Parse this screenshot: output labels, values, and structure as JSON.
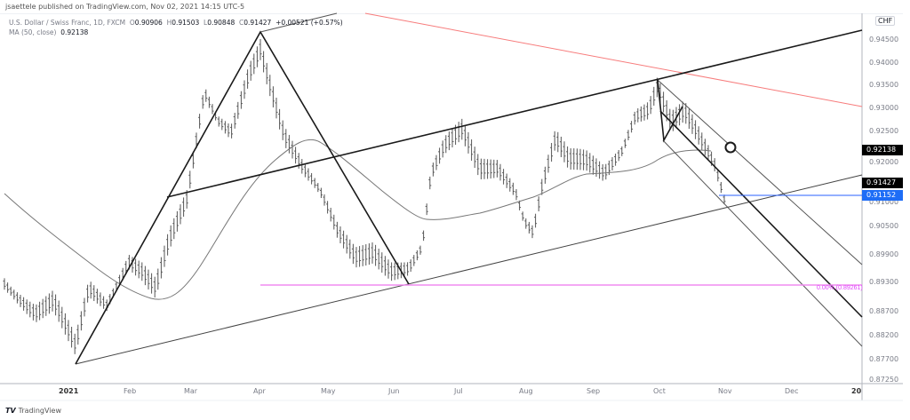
{
  "header": {
    "published": "jsaettele published on TradingView.com, Nov 02, 2021 14:15 UTC-5"
  },
  "legend": {
    "symbol": "U.S. Dollar / Swiss Franc, 1D, FXCM",
    "open_label": "O",
    "open": "0.90906",
    "high_label": "H",
    "high": "0.91503",
    "low_label": "L",
    "low": "0.90848",
    "close_label": "C",
    "close": "0.91427",
    "change": "+0.00521 (+0.57%)",
    "ma_label": "MA (50, close)",
    "ma_value": "0.92138"
  },
  "currency": "CHF",
  "price_tags": {
    "ma": {
      "value": "0.92138",
      "color": "#000000"
    },
    "close": {
      "value": "0.91427",
      "color": "#000000"
    },
    "level": {
      "value": "0.91152",
      "color": "#1e6df6"
    }
  },
  "fib_label": "0.00% (0.89261)",
  "footer": {
    "brand": "TradingView",
    "logo_glyph": "𝙏𝙑"
  },
  "colors": {
    "bars": "#555555",
    "trend": "#1a1a1a",
    "red_line": "#f77c7c",
    "fib": "#f08cf0",
    "blue_level": "#2962ff"
  },
  "chart_data": {
    "type": "ohlc",
    "title": "U.S. Dollar / Swiss Franc, 1D, FXCM",
    "xlabel": "",
    "ylabel": "CHF",
    "x_ticks": [
      "2021",
      "Feb",
      "Mar",
      "Apr",
      "May",
      "Jun",
      "Jul",
      "Aug",
      "Sep",
      "Oct",
      "Nov",
      "Dec",
      "20"
    ],
    "y_ticks": [
      "0.94500",
      "0.94000",
      "0.93500",
      "0.93000",
      "0.92500",
      "0.92000",
      "0.91000",
      "0.90500",
      "0.89900",
      "0.89300",
      "0.88700",
      "0.88200",
      "0.87700",
      "0.87250"
    ],
    "ylim": [
      0.8725,
      0.9505
    ],
    "grid": false,
    "last": {
      "open": 0.90906,
      "high": 0.91503,
      "low": 0.90848,
      "close": 0.91427,
      "change": 0.00521,
      "change_pct": 0.57
    },
    "indicators": [
      {
        "name": "MA (50, close)",
        "value": 0.92138
      }
    ],
    "horizontal_levels": [
      {
        "value": 0.91152,
        "color": "#2962ff"
      },
      {
        "value": 0.89261,
        "label": "0.00% (0.89261)",
        "color": "#f08cf0"
      }
    ],
    "approx_closes_monthly": [
      {
        "month": "Jan",
        "value": 0.885
      },
      {
        "month": "Feb",
        "value": 0.905
      },
      {
        "month": "Mar",
        "value": 0.935
      },
      {
        "month": "Apr",
        "value": 0.935
      },
      {
        "month": "May",
        "value": 0.905
      },
      {
        "month": "Jun",
        "value": 0.915
      },
      {
        "month": "Jul",
        "value": 0.915
      },
      {
        "month": "Aug",
        "value": 0.913
      },
      {
        "month": "Sep",
        "value": 0.93
      },
      {
        "month": "Oct",
        "value": 0.92
      },
      {
        "month": "Nov",
        "value": 0.91427
      }
    ]
  }
}
